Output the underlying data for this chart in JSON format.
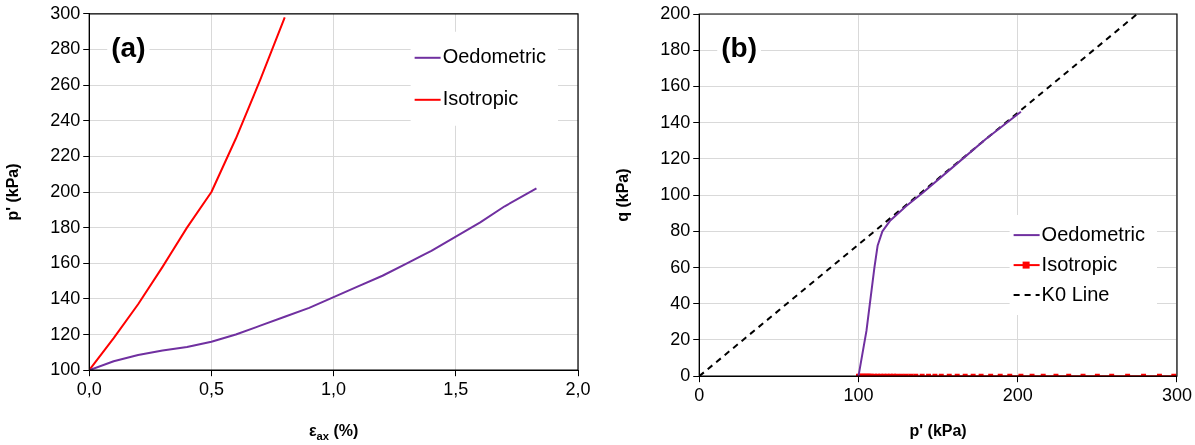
{
  "chart_data": [
    {
      "type": "line",
      "xlabel": "ε$_{ax}$ (%)",
      "ylabel": "p' (kPa)",
      "annotations": [
        "(a)"
      ],
      "xlim": [
        0,
        2
      ],
      "xticks": [
        {
          "value": 0,
          "label": "0,0"
        },
        {
          "value": 0.5,
          "label": "0,5"
        },
        {
          "value": 1,
          "label": "1,0"
        },
        {
          "value": 1.5,
          "label": "1,5"
        },
        {
          "value": 2,
          "label": "2,0"
        }
      ],
      "ylim": [
        100,
        300
      ],
      "yticks": [
        100,
        120,
        140,
        160,
        180,
        200,
        220,
        240,
        260,
        280,
        300
      ],
      "grid": true,
      "legend": "top right",
      "line_style": "solid",
      "marker": "none",
      "series": [
        {
          "name": "Oedometric",
          "color": "#7030a0",
          "x": [
            0,
            0.1,
            0.2,
            0.3,
            0.4,
            0.5,
            0.6,
            0.7,
            0.8,
            0.9,
            1.0,
            1.1,
            1.2,
            1.3,
            1.4,
            1.5,
            1.6,
            1.7,
            1.83
          ],
          "values": [
            100,
            105,
            108.5,
            111,
            113,
            116,
            120,
            125,
            130,
            135,
            141,
            147,
            153,
            160,
            167,
            175,
            183,
            192,
            202
          ]
        },
        {
          "name": "Isotropic",
          "color": "#ff0000",
          "x": [
            0,
            0.1,
            0.2,
            0.3,
            0.4,
            0.5,
            0.6,
            0.7,
            0.8
          ],
          "values": [
            100,
            118,
            137,
            158,
            180,
            200,
            230,
            263,
            298
          ]
        }
      ]
    },
    {
      "type": "line",
      "xlabel": "p' (kPa)",
      "ylabel": "q (kPa)",
      "annotations": [
        "(b)"
      ],
      "xlim": [
        0,
        300
      ],
      "xticks": [
        0,
        100,
        200,
        300
      ],
      "ylim": [
        0,
        200
      ],
      "yticks": [
        0,
        20,
        40,
        60,
        80,
        100,
        120,
        140,
        160,
        180,
        200
      ],
      "grid": true,
      "legend": "right",
      "series": [
        {
          "name": "Oedometric",
          "color": "#7030a0",
          "marker": "none",
          "line_style": "solid",
          "x": [
            100,
            105,
            110,
            112,
            115,
            120,
            130,
            140,
            160,
            180,
            202
          ],
          "values": [
            0,
            25,
            60,
            72,
            80,
            86,
            94,
            101,
            116,
            131,
            146
          ]
        },
        {
          "name": "Isotropic",
          "color": "#ff0000",
          "marker": "square",
          "line_style": "solid",
          "x": [
            100,
            101,
            102,
            103,
            104,
            105,
            106,
            107,
            108,
            110,
            112,
            114,
            116,
            118,
            120,
            122,
            124,
            127,
            130,
            133,
            136,
            140,
            144,
            148,
            152,
            157,
            162,
            167,
            172,
            177,
            183,
            189,
            195,
            202,
            209,
            216,
            224,
            232,
            241,
            250,
            259,
            269,
            279,
            289,
            298
          ],
          "values": [
            0,
            0,
            0,
            0,
            0,
            0,
            0,
            0,
            0,
            0,
            0,
            0,
            0,
            0,
            0,
            0,
            0,
            0,
            0,
            0,
            0,
            0,
            0,
            0,
            0,
            0,
            0,
            0,
            0,
            0,
            0,
            0,
            0,
            0,
            0,
            0,
            0,
            0,
            0,
            0,
            0,
            0,
            0,
            0,
            0
          ]
        },
        {
          "name": "K0 Line",
          "color": "#000000",
          "marker": "none",
          "line_style": "dashed",
          "x": [
            0,
            275
          ],
          "values": [
            0,
            200
          ]
        }
      ]
    }
  ]
}
